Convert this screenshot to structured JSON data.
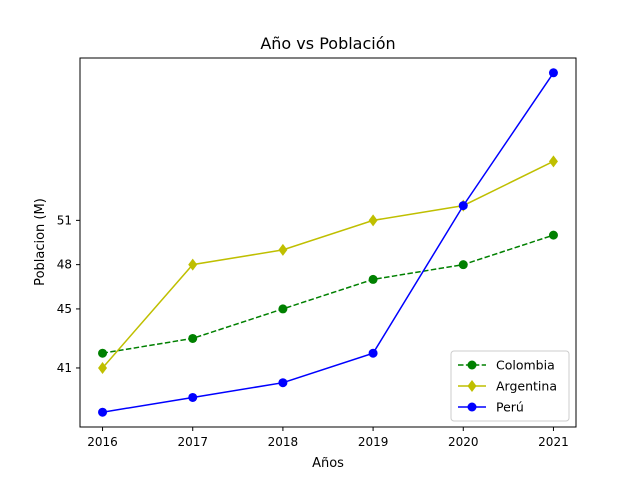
{
  "chart_data": {
    "type": "line",
    "title": "Año vs Población",
    "xlabel": "Años",
    "ylabel": "Poblacion (M)",
    "x": [
      2016,
      2017,
      2018,
      2019,
      2020,
      2021
    ],
    "xticks": [
      "2016",
      "2017",
      "2018",
      "2019",
      "2020",
      "2021"
    ],
    "yticks": [
      "41",
      "45",
      "48",
      "51"
    ],
    "ylim": [
      37,
      62
    ],
    "legend_position": "lower-right",
    "series": [
      {
        "name": "Colombia",
        "values": [
          42,
          43,
          45,
          47,
          48,
          50
        ],
        "color": "#008000",
        "linestyle": "dashed",
        "marker": "circle"
      },
      {
        "name": "Argentina",
        "values": [
          41,
          48,
          49,
          51,
          52,
          55
        ],
        "color": "#bfbf00",
        "linestyle": "solid",
        "marker": "diamond"
      },
      {
        "name": "Perú",
        "values": [
          38,
          39,
          40,
          42,
          52,
          61
        ],
        "color": "#0000ff",
        "linestyle": "solid",
        "marker": "circle"
      }
    ]
  }
}
